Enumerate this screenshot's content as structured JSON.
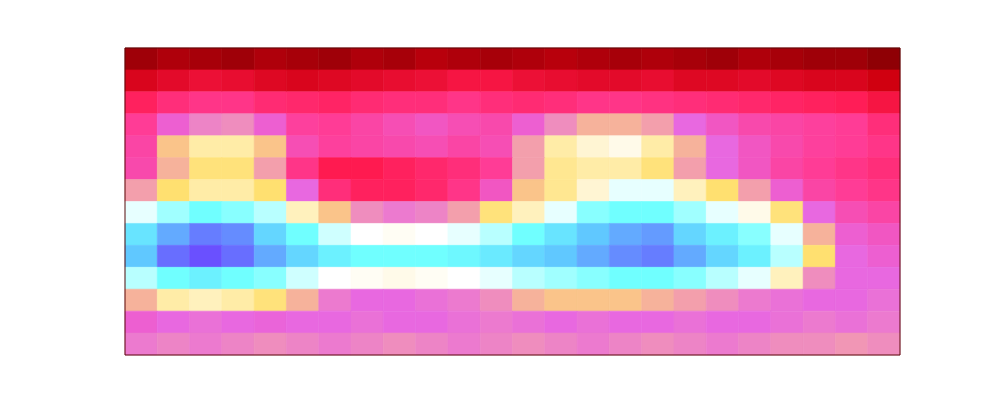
{
  "chart_data": {
    "type": "heatmap",
    "tick_labels": false,
    "cells": [
      [
        0.06,
        0.08,
        0.07,
        0.06,
        0.08,
        0.07,
        0.06,
        0.08,
        0.07,
        0.09,
        0.08,
        0.07,
        0.08,
        0.09,
        0.08,
        0.07,
        0.08,
        0.07,
        0.06,
        0.08,
        0.07,
        0.06,
        0.06,
        0.04
      ],
      [
        0.14,
        0.16,
        0.18,
        0.17,
        0.15,
        0.14,
        0.15,
        0.16,
        0.17,
        0.18,
        0.2,
        0.2,
        0.18,
        0.17,
        0.16,
        0.16,
        0.17,
        0.15,
        0.15,
        0.16,
        0.15,
        0.14,
        0.14,
        0.12
      ],
      [
        0.24,
        0.28,
        0.3,
        0.3,
        0.27,
        0.26,
        0.25,
        0.27,
        0.28,
        0.28,
        0.3,
        0.28,
        0.27,
        0.28,
        0.3,
        0.3,
        0.29,
        0.28,
        0.27,
        0.26,
        0.25,
        0.24,
        0.23,
        0.2
      ],
      [
        0.32,
        0.4,
        0.45,
        0.46,
        0.4,
        0.33,
        0.32,
        0.34,
        0.36,
        0.38,
        0.36,
        0.35,
        0.4,
        0.46,
        0.5,
        0.5,
        0.48,
        0.42,
        0.38,
        0.35,
        0.34,
        0.33,
        0.32,
        0.28
      ],
      [
        0.34,
        0.52,
        0.6,
        0.6,
        0.52,
        0.36,
        0.33,
        0.34,
        0.35,
        0.36,
        0.34,
        0.36,
        0.48,
        0.6,
        0.64,
        0.66,
        0.6,
        0.5,
        0.42,
        0.38,
        0.35,
        0.33,
        0.32,
        0.3
      ],
      [
        0.35,
        0.5,
        0.56,
        0.56,
        0.48,
        0.3,
        0.22,
        0.22,
        0.24,
        0.26,
        0.28,
        0.32,
        0.48,
        0.58,
        0.6,
        0.6,
        0.56,
        0.48,
        0.42,
        0.38,
        0.34,
        0.32,
        0.3,
        0.28
      ],
      [
        0.48,
        0.55,
        0.6,
        0.6,
        0.55,
        0.42,
        0.28,
        0.24,
        0.24,
        0.26,
        0.3,
        0.38,
        0.52,
        0.58,
        0.64,
        0.7,
        0.7,
        0.62,
        0.55,
        0.48,
        0.4,
        0.34,
        0.32,
        0.3
      ],
      [
        0.7,
        0.76,
        0.8,
        0.78,
        0.74,
        0.62,
        0.52,
        0.46,
        0.44,
        0.45,
        0.48,
        0.56,
        0.62,
        0.7,
        0.78,
        0.8,
        0.8,
        0.76,
        0.7,
        0.66,
        0.56,
        0.42,
        0.36,
        0.34
      ],
      [
        0.84,
        0.9,
        0.93,
        0.92,
        0.86,
        0.8,
        0.72,
        0.68,
        0.67,
        0.68,
        0.7,
        0.74,
        0.8,
        0.84,
        0.88,
        0.9,
        0.91,
        0.86,
        0.82,
        0.78,
        0.7,
        0.5,
        0.4,
        0.38
      ],
      [
        0.88,
        0.94,
        0.96,
        0.94,
        0.9,
        0.86,
        0.82,
        0.8,
        0.8,
        0.8,
        0.81,
        0.83,
        0.86,
        0.88,
        0.9,
        0.92,
        0.93,
        0.9,
        0.86,
        0.82,
        0.74,
        0.55,
        0.42,
        0.4
      ],
      [
        0.74,
        0.8,
        0.82,
        0.8,
        0.78,
        0.72,
        0.68,
        0.67,
        0.66,
        0.67,
        0.68,
        0.7,
        0.74,
        0.76,
        0.78,
        0.8,
        0.8,
        0.78,
        0.74,
        0.7,
        0.62,
        0.46,
        0.42,
        0.42
      ],
      [
        0.5,
        0.6,
        0.62,
        0.6,
        0.56,
        0.5,
        0.44,
        0.42,
        0.42,
        0.43,
        0.44,
        0.46,
        0.5,
        0.52,
        0.52,
        0.52,
        0.5,
        0.48,
        0.46,
        0.44,
        0.43,
        0.42,
        0.42,
        0.43
      ],
      [
        0.4,
        0.42,
        0.43,
        0.42,
        0.41,
        0.42,
        0.42,
        0.43,
        0.42,
        0.42,
        0.43,
        0.44,
        0.43,
        0.42,
        0.43,
        0.42,
        0.42,
        0.43,
        0.42,
        0.42,
        0.43,
        0.44,
        0.43,
        0.44
      ],
      [
        0.44,
        0.45,
        0.44,
        0.45,
        0.46,
        0.45,
        0.44,
        0.45,
        0.46,
        0.45,
        0.44,
        0.45,
        0.46,
        0.45,
        0.44,
        0.45,
        0.46,
        0.45,
        0.44,
        0.45,
        0.46,
        0.46,
        0.47,
        0.46
      ]
    ]
  }
}
